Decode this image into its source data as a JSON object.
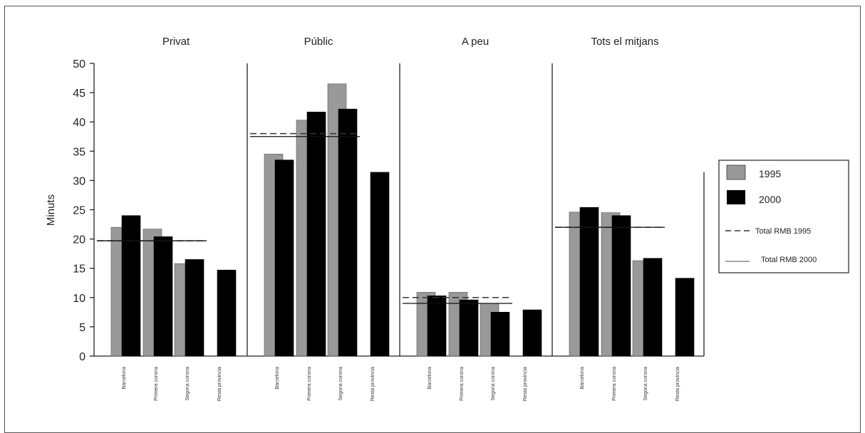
{
  "chart_data": {
    "type": "bar",
    "ylabel": "Minuts",
    "ylim": [
      0,
      50
    ],
    "yticks": [
      "0",
      "5",
      "10",
      "15",
      "20",
      "25",
      "30",
      "35",
      "40",
      "45",
      "50"
    ],
    "panels": [
      {
        "title": "Privat",
        "categories": [
          "Barcelona",
          "Primera corona",
          "Segona corona",
          "Resta provincia"
        ],
        "series": [
          {
            "name": "1995",
            "values": [
              22,
              21.7,
              15.8,
              null
            ]
          },
          {
            "name": "2000",
            "values": [
              24,
              20.4,
              16.5,
              14.7
            ]
          }
        ],
        "total_1995": 19.7,
        "total_2000": 19.7
      },
      {
        "title": "Públic",
        "categories": [
          "Barcelona",
          "Primera corona",
          "Segona corona",
          "Resta provincia"
        ],
        "series": [
          {
            "name": "1995",
            "values": [
              34.5,
              40.3,
              46.5,
              null
            ]
          },
          {
            "name": "2000",
            "values": [
              33.5,
              41.7,
              42.2,
              31.4
            ]
          }
        ],
        "total_1995": 38,
        "total_2000": 37.5
      },
      {
        "title": "A peu",
        "categories": [
          "Barcelona",
          "Primera corona",
          "Segona corona",
          "Resta provincia"
        ],
        "series": [
          {
            "name": "1995",
            "values": [
              10.9,
              10.9,
              9,
              null
            ]
          },
          {
            "name": "2000",
            "values": [
              10.3,
              9.6,
              7.5,
              7.9
            ]
          }
        ],
        "total_1995": 10,
        "total_2000": 9
      },
      {
        "title": "Tots el mitjans",
        "categories": [
          "Barcelona",
          "Primera corona",
          "Segona corona",
          "Resta provincia"
        ],
        "series": [
          {
            "name": "1995",
            "values": [
              24.6,
              24.5,
              16.3,
              null
            ]
          },
          {
            "name": "2000",
            "values": [
              25.4,
              24,
              16.7,
              13.3
            ]
          }
        ],
        "total_1995": 22,
        "total_2000": 22
      }
    ],
    "legend": {
      "position": "right",
      "items": [
        "1995",
        "2000",
        "Total RMB 1995",
        "Total RMB 2000"
      ]
    },
    "colors": {
      "1995": "#999999",
      "2000": "#000000",
      "axis": "#222222"
    }
  }
}
